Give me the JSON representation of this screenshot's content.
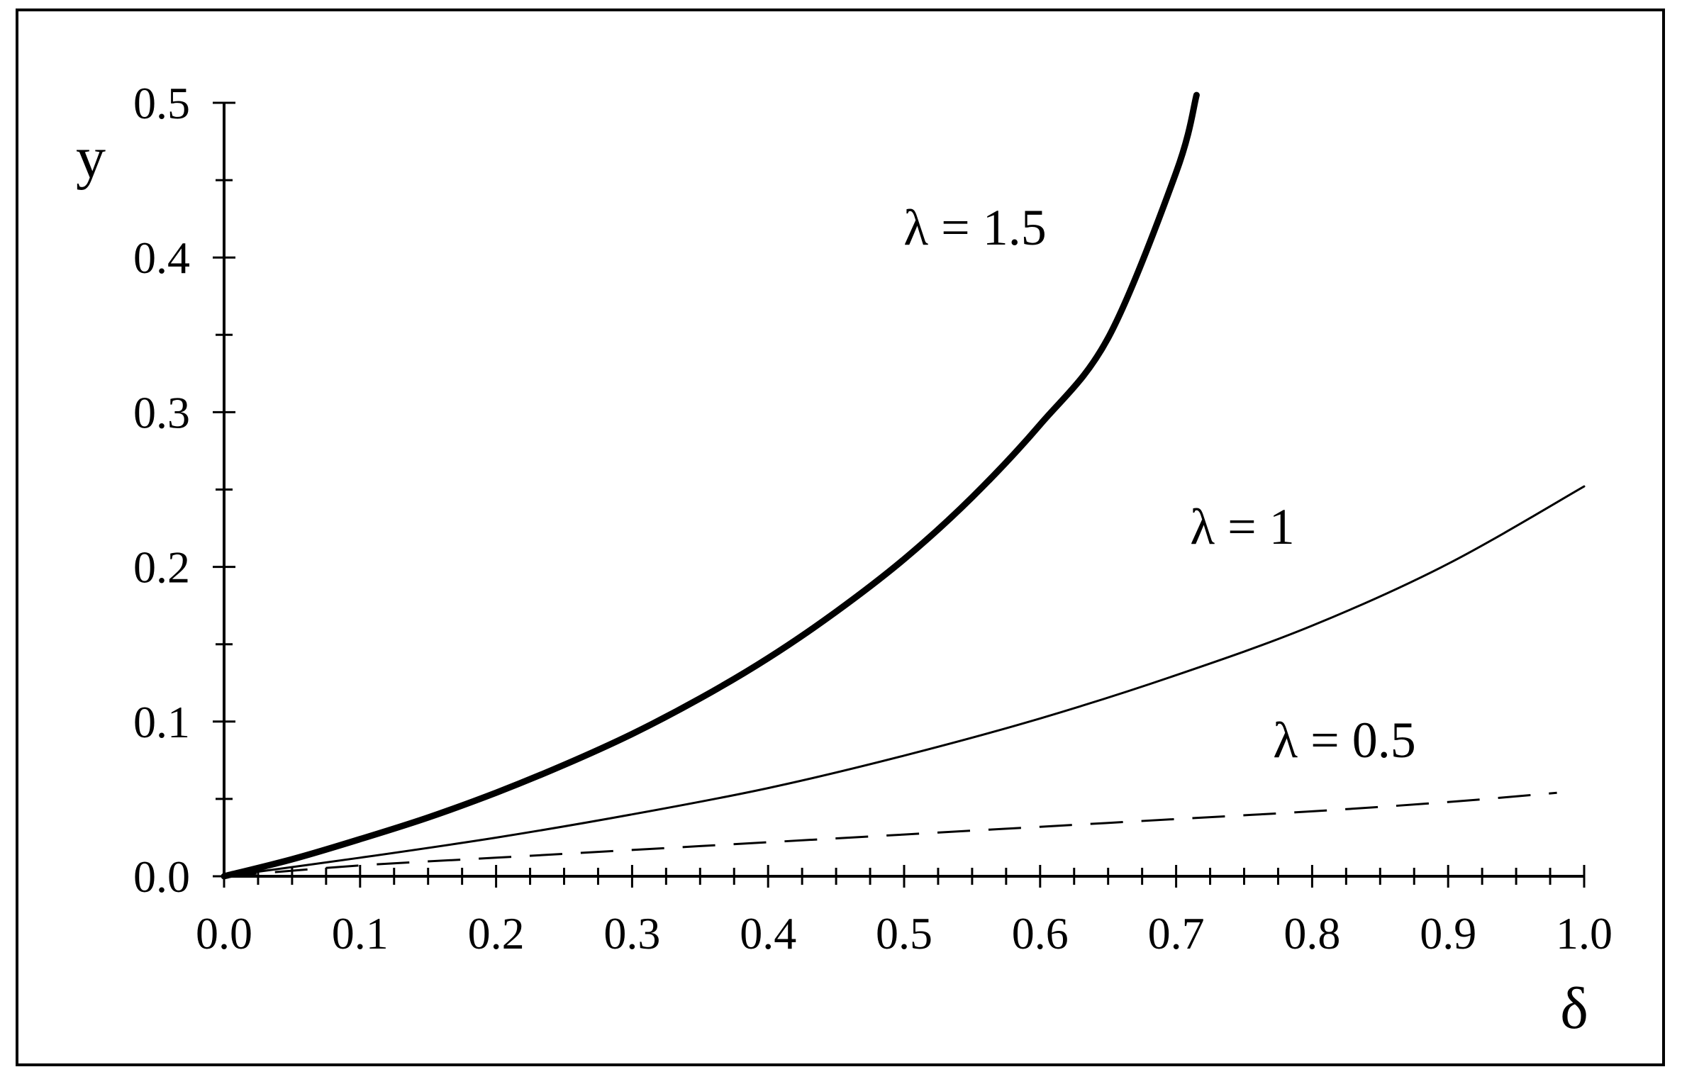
{
  "chart_data": {
    "type": "line",
    "xlabel": "δ",
    "ylabel": "y",
    "xlim": [
      0.0,
      1.0
    ],
    "ylim": [
      0.0,
      0.5
    ],
    "xticks": [
      "0.0",
      "0.1",
      "0.2",
      "0.3",
      "0.4",
      "0.5",
      "0.6",
      "0.7",
      "0.8",
      "0.9",
      "1.0"
    ],
    "yticks": [
      "0.0",
      "0.1",
      "0.2",
      "0.3",
      "0.4",
      "0.5"
    ],
    "x_minor_step": 0.025,
    "y_minor_step": 0.05,
    "grid": false,
    "legend": "none",
    "series": [
      {
        "name": "λ = 1.5",
        "style": "solid-thick",
        "x": [
          0.0,
          0.05,
          0.1,
          0.15,
          0.2,
          0.25,
          0.3,
          0.35,
          0.4,
          0.45,
          0.5,
          0.55,
          0.6,
          0.65,
          0.7,
          0.715
        ],
        "y": [
          0.0,
          0.011,
          0.024,
          0.038,
          0.054,
          0.072,
          0.092,
          0.115,
          0.141,
          0.171,
          0.205,
          0.245,
          0.292,
          0.348,
          0.455,
          0.505
        ]
      },
      {
        "name": "λ = 1",
        "style": "solid-thin",
        "x": [
          0.0,
          0.1,
          0.2,
          0.3,
          0.4,
          0.5,
          0.6,
          0.7,
          0.8,
          0.9,
          1.0
        ],
        "y": [
          0.0,
          0.012,
          0.025,
          0.04,
          0.057,
          0.078,
          0.102,
          0.13,
          0.162,
          0.202,
          0.252
        ]
      },
      {
        "name": "λ = 0.5",
        "style": "dashed",
        "x": [
          0.0,
          0.1,
          0.2,
          0.3,
          0.4,
          0.5,
          0.6,
          0.7,
          0.8,
          0.9,
          0.98
        ],
        "y": [
          0.0,
          0.007,
          0.012,
          0.017,
          0.022,
          0.027,
          0.032,
          0.037,
          0.042,
          0.048,
          0.054
        ]
      }
    ]
  }
}
